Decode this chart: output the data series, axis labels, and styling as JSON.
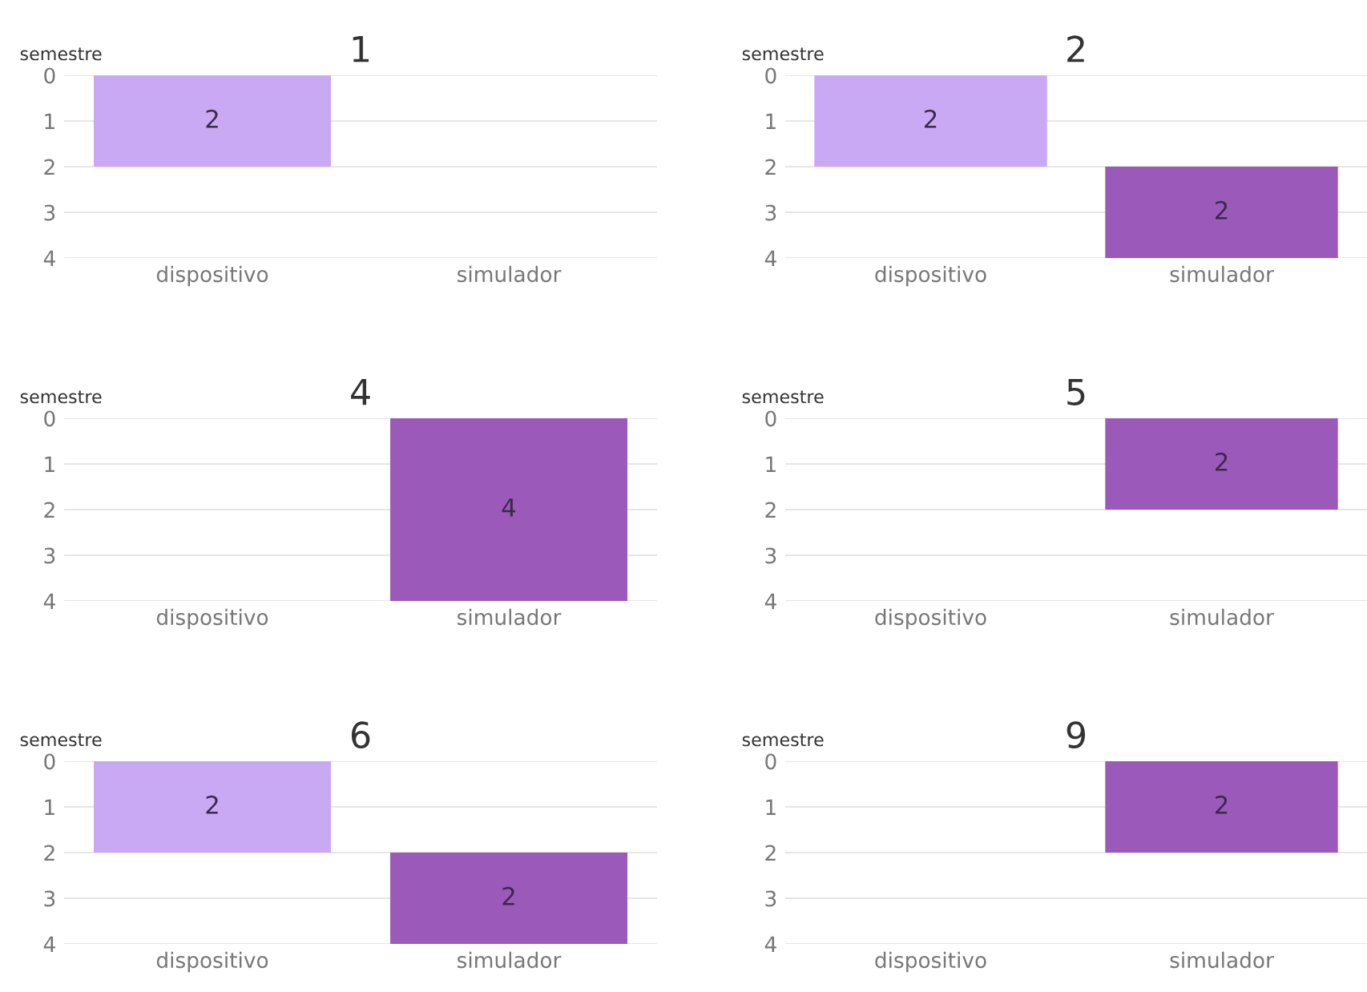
{
  "chart_data": [
    {
      "type": "bar",
      "title": "1",
      "ylabel": "semestre",
      "categories": [
        "dispositivo",
        "simulador"
      ],
      "values": [
        2,
        null
      ],
      "base": [
        0,
        null
      ],
      "colors": [
        "#c9a9f3",
        "#9b59b9"
      ],
      "ylim": [
        4,
        0
      ],
      "yticks": [
        0,
        1,
        2,
        3,
        4
      ],
      "grid": "y",
      "data_labels": true
    },
    {
      "type": "bar",
      "title": "2",
      "ylabel": "semestre",
      "categories": [
        "dispositivo",
        "simulador"
      ],
      "values": [
        2,
        2
      ],
      "base": [
        0,
        2
      ],
      "colors": [
        "#c9a9f3",
        "#9b59b9"
      ],
      "ylim": [
        4,
        0
      ],
      "yticks": [
        0,
        1,
        2,
        3,
        4
      ],
      "grid": "y",
      "data_labels": true
    },
    {
      "type": "bar",
      "title": "4",
      "ylabel": "semestre",
      "categories": [
        "dispositivo",
        "simulador"
      ],
      "values": [
        null,
        4
      ],
      "base": [
        null,
        0
      ],
      "colors": [
        "#c9a9f3",
        "#9b59b9"
      ],
      "ylim": [
        4,
        0
      ],
      "yticks": [
        0,
        1,
        2,
        3,
        4
      ],
      "grid": "y",
      "data_labels": true
    },
    {
      "type": "bar",
      "title": "5",
      "ylabel": "semestre",
      "categories": [
        "dispositivo",
        "simulador"
      ],
      "values": [
        null,
        2
      ],
      "base": [
        null,
        0
      ],
      "colors": [
        "#c9a9f3",
        "#9b59b9"
      ],
      "ylim": [
        4,
        0
      ],
      "yticks": [
        0,
        1,
        2,
        3,
        4
      ],
      "grid": "y",
      "data_labels": true
    },
    {
      "type": "bar",
      "title": "6",
      "ylabel": "semestre",
      "categories": [
        "dispositivo",
        "simulador"
      ],
      "values": [
        2,
        2
      ],
      "base": [
        0,
        2
      ],
      "colors": [
        "#c9a9f3",
        "#9b59b9"
      ],
      "ylim": [
        4,
        0
      ],
      "yticks": [
        0,
        1,
        2,
        3,
        4
      ],
      "grid": "y",
      "data_labels": true
    },
    {
      "type": "bar",
      "title": "9",
      "ylabel": "semestre",
      "categories": [
        "dispositivo",
        "simulador"
      ],
      "values": [
        null,
        2
      ],
      "base": [
        null,
        0
      ],
      "colors": [
        "#c9a9f3",
        "#9b59b9"
      ],
      "ylim": [
        4,
        0
      ],
      "yticks": [
        0,
        1,
        2,
        3,
        4
      ],
      "grid": "y",
      "data_labels": true
    }
  ]
}
